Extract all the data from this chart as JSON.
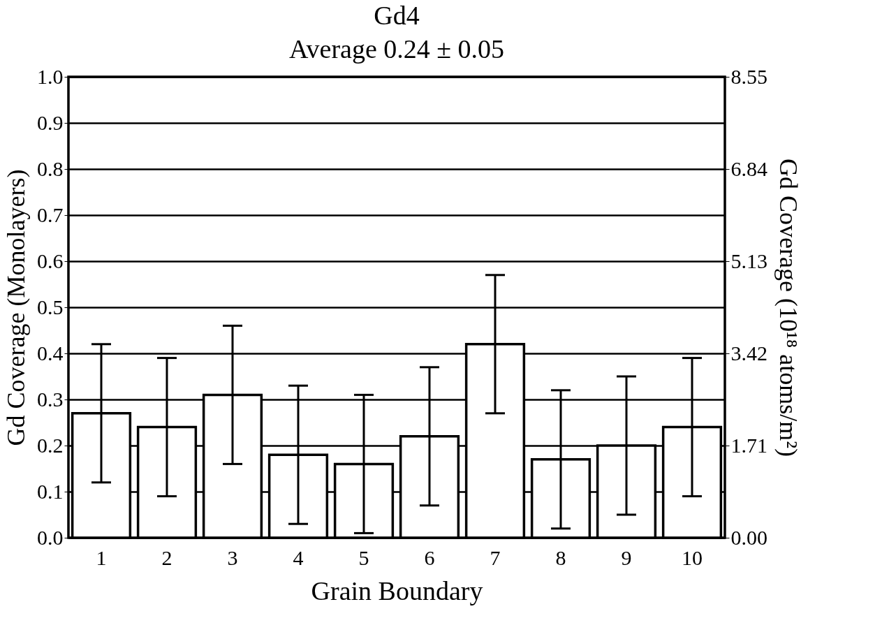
{
  "chart_data": {
    "type": "bar",
    "title": "Gd4",
    "subtitle": "Average 0.24 ± 0.05",
    "xlabel": "Grain Boundary",
    "ylabel": "Gd Coverage (Monolayers)",
    "y2label": "Gd Coverage (10¹⁸ atoms/m²)",
    "categories": [
      "1",
      "2",
      "3",
      "4",
      "5",
      "6",
      "7",
      "8",
      "9",
      "10"
    ],
    "values": [
      0.27,
      0.24,
      0.31,
      0.18,
      0.16,
      0.22,
      0.42,
      0.17,
      0.2,
      0.24
    ],
    "errors": [
      0.15,
      0.15,
      0.15,
      0.15,
      0.15,
      0.15,
      0.15,
      0.15,
      0.15,
      0.15
    ],
    "color": "#ffffff",
    "ylim": [
      0,
      1.0
    ],
    "yticks": [
      {
        "value": 0,
        "label": "0.0"
      },
      0.1,
      0.2,
      0.3,
      0.4,
      0.5,
      0.6,
      0.7,
      0.8,
      0.9,
      {
        "value": 1.0,
        "label": "1.0"
      }
    ],
    "y2lim": [
      0,
      8.55
    ],
    "y2ticks": [
      {
        "value": 0,
        "label": "0.00"
      },
      1.71,
      3.42,
      5.13,
      6.84,
      8.55
    ],
    "grid": "y"
  }
}
